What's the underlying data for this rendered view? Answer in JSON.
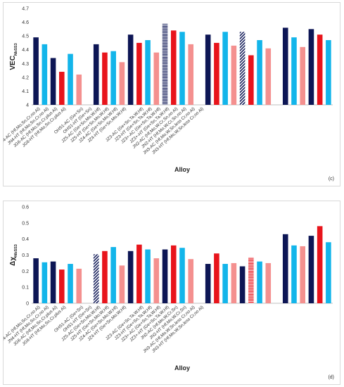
{
  "chart_data": [
    {
      "type": "bar",
      "panel_tag": "(c)",
      "ylabel": "VEC",
      "ylabel_sub": "NbSS3",
      "xlabel": "Alloy",
      "ylim": [
        4,
        4.7
      ],
      "yticks": [
        "4",
        "4.1",
        "4.2",
        "4.3",
        "4.4",
        "4.5",
        "4.6",
        "4.7"
      ],
      "grid": false,
      "categories": [
        "JN4-AC (Hf,Mo,Sn,Cr,no Al)",
        "JN4-HT (Hf,Mo,Sn,Cr,no Al)",
        "JG6-AC (Hf,Mo,Sn,Cr,plus Al)",
        "JG6-HT (Hf,Mo,Sn,Cr,plus Al)",
        "OHS1-AC (Ge+Sn)",
        "OHS1-HT (Ge+Sn)",
        "JZ5-AC (Ge+Sn,Mo,W,Hf)",
        "JZ5-HT (Ge+Sn,Mo,W,Hf)",
        "JZ4-AC (Ge+Sn,Mo,W,Hf)",
        "JZ4-HT (Ge+Sn,Mo,W,Hf)",
        "JZ3-AC (Ge+Sn,Ta,W,Hf)",
        "JZ3-HT (Ge+Sn,Ta,W,Hf)",
        "JZ3+-AC (Ge+Sn,Ta,W,Hf)",
        "JZ3+-HT (Ge+Sn,Ta,W,Hf)",
        "JN2-AC (Hf,Mo,W,Cr,Sn,no Al)",
        "JN2-HT (Hf,Mo,W,Cr,Sn,no Al)",
        "JN3-AC (Hf,Mo,W,Sn,less Cr,no Al)",
        "JN3-HT (Hf,Mo,W,Sn,less Cr,no Al)"
      ],
      "label_slot": [
        0.5,
        1.5,
        2.5,
        3.5,
        5.5,
        6.5,
        7.5,
        8.5,
        9.5,
        10.5,
        12.5,
        13.5,
        14.5,
        15.5,
        16.5,
        17.5,
        18.5,
        19.5
      ],
      "bars": [
        {
          "slot": 0,
          "value": 4.49,
          "color": "#0d1655"
        },
        {
          "slot": 1,
          "value": 4.44,
          "color": "#13b5ea"
        },
        {
          "slot": 2,
          "value": 4.34,
          "color": "#0d1655"
        },
        {
          "slot": 3,
          "value": 4.24,
          "color": "#e8141b"
        },
        {
          "slot": 4,
          "value": 4.37,
          "color": "#13b5ea"
        },
        {
          "slot": 5,
          "value": 4.22,
          "color": "#f4908f"
        },
        {
          "slot": 7,
          "value": 4.44,
          "color": "#0d1655"
        },
        {
          "slot": 8,
          "value": 4.38,
          "color": "#e8141b"
        },
        {
          "slot": 9,
          "value": 4.39,
          "color": "#13b5ea"
        },
        {
          "slot": 10,
          "value": 4.31,
          "color": "#f4908f"
        },
        {
          "slot": 11,
          "value": 4.51,
          "color": "#0d1655"
        },
        {
          "slot": 12,
          "value": 4.45,
          "color": "#e8141b"
        },
        {
          "slot": 13,
          "value": 4.47,
          "color": "#13b5ea"
        },
        {
          "slot": 14,
          "value": 4.38,
          "color": "#f4908f"
        },
        {
          "slot": 15,
          "value": 4.59,
          "color": "#0d1655",
          "pattern": "hlines"
        },
        {
          "slot": 16,
          "value": 4.54,
          "color": "#e8141b"
        },
        {
          "slot": 17,
          "value": 4.53,
          "color": "#13b5ea"
        },
        {
          "slot": 18,
          "value": 4.44,
          "color": "#f4908f"
        },
        {
          "slot": 20,
          "value": 4.51,
          "color": "#0d1655"
        },
        {
          "slot": 21,
          "value": 4.45,
          "color": "#e8141b"
        },
        {
          "slot": 22,
          "value": 4.53,
          "color": "#13b5ea"
        },
        {
          "slot": 23,
          "value": 4.43,
          "color": "#f4908f"
        },
        {
          "slot": 24,
          "value": 4.53,
          "color": "#0d1655",
          "pattern": "diag"
        },
        {
          "slot": 25,
          "value": 4.36,
          "color": "#e8141b"
        },
        {
          "slot": 26,
          "value": 4.47,
          "color": "#13b5ea"
        },
        {
          "slot": 27,
          "value": 4.41,
          "color": "#f4908f"
        },
        {
          "slot": 29,
          "value": 4.56,
          "color": "#0d1655"
        },
        {
          "slot": 30,
          "value": 4.49,
          "color": "#13b5ea"
        },
        {
          "slot": 31,
          "value": 4.42,
          "color": "#f4908f"
        },
        {
          "slot": 32,
          "value": 4.55,
          "color": "#0d1655"
        },
        {
          "slot": 33,
          "value": 4.51,
          "color": "#e8141b"
        },
        {
          "slot": 34,
          "value": 4.47,
          "color": "#13b5ea"
        }
      ]
    },
    {
      "type": "bar",
      "panel_tag": "(d)",
      "ylabel": "Δχ",
      "ylabel_sub": "NbSS3",
      "xlabel": "Alloy",
      "ylim": [
        0,
        0.6
      ],
      "yticks": [
        "0",
        "0.1",
        "0.2",
        "0.3",
        "0.4",
        "0.5",
        "0.6"
      ],
      "grid": false,
      "categories": [
        "JN4-AC (Hf,Mo,Sn,Cr,no Al)",
        "JN4-HT (Hf,Mo,Sn,Cr,no Al)",
        "JG6-AC (Hf,Mo,Sn,Cr,plus Al)",
        "JG6-HT (Hf,Mo,Sn,Cr,plus Al)",
        "OHS1-AC (Ge+Sn)",
        "OHS1-HT (Ge+Sn)",
        "JZ5-AC (Ge+Sn,Mo,W,Hf)",
        "JZ5-HT (Ge+Sn,Mo,W,Hf)",
        "JZ4-AC (Ge+Sn,Mo,W,Hf)",
        "JZ4-HT (Ge+Sn,Mo,W,Hf)",
        "JZ3-AC (Ge+Sn,Ta,W,Hf)",
        "JZ3-HT (Ge+Sn,Ta,W,Hf)",
        "JZ3+-AC (Ge+Sn,Ta,W,Hf)",
        "JZ3+-HT (Ge+Sn,Ta,W,Hf)",
        "JN2-AC (Hf,Mo,W,Cr,Sn)",
        "JN2-HT (Hf,Mo,W,Cr,Sn)",
        "JN3-AC (Hf,Mo,W,Sn,less Cr,no Al)",
        "JN3-HT (Hf,Mo,W,Sn,less Cr,no Al)"
      ],
      "label_slot": [
        0.5,
        1.5,
        2.5,
        3.5,
        5.5,
        6.5,
        7.5,
        8.5,
        9.5,
        10.5,
        12.5,
        13.5,
        14.5,
        15.5,
        16.5,
        17.5,
        18.5,
        19.5
      ],
      "bars": [
        {
          "slot": 0,
          "value": 0.28,
          "color": "#0d1655"
        },
        {
          "slot": 1,
          "value": 0.255,
          "color": "#13b5ea"
        },
        {
          "slot": 2,
          "value": 0.26,
          "color": "#0d1655"
        },
        {
          "slot": 3,
          "value": 0.21,
          "color": "#e8141b"
        },
        {
          "slot": 4,
          "value": 0.245,
          "color": "#13b5ea"
        },
        {
          "slot": 5,
          "value": 0.215,
          "color": "#f4908f"
        },
        {
          "slot": 7,
          "value": 0.305,
          "color": "#0d1655",
          "pattern": "diag"
        },
        {
          "slot": 8,
          "value": 0.325,
          "color": "#e8141b"
        },
        {
          "slot": 9,
          "value": 0.35,
          "color": "#13b5ea"
        },
        {
          "slot": 10,
          "value": 0.235,
          "color": "#f4908f"
        },
        {
          "slot": 11,
          "value": 0.325,
          "color": "#0d1655"
        },
        {
          "slot": 12,
          "value": 0.365,
          "color": "#e8141b"
        },
        {
          "slot": 13,
          "value": 0.335,
          "color": "#13b5ea"
        },
        {
          "slot": 14,
          "value": 0.28,
          "color": "#f4908f"
        },
        {
          "slot": 15,
          "value": 0.335,
          "color": "#0d1655"
        },
        {
          "slot": 16,
          "value": 0.36,
          "color": "#e8141b"
        },
        {
          "slot": 17,
          "value": 0.345,
          "color": "#13b5ea"
        },
        {
          "slot": 18,
          "value": 0.275,
          "color": "#f4908f"
        },
        {
          "slot": 20,
          "value": 0.245,
          "color": "#0d1655"
        },
        {
          "slot": 21,
          "value": 0.31,
          "color": "#e8141b"
        },
        {
          "slot": 22,
          "value": 0.245,
          "color": "#13b5ea"
        },
        {
          "slot": 23,
          "value": 0.25,
          "color": "#f4908f"
        },
        {
          "slot": 24,
          "value": 0.23,
          "color": "#0d1655"
        },
        {
          "slot": 25,
          "value": 0.285,
          "color": "#e8141b",
          "pattern": "hlines"
        },
        {
          "slot": 26,
          "value": 0.26,
          "color": "#13b5ea"
        },
        {
          "slot": 27,
          "value": 0.25,
          "color": "#f4908f"
        },
        {
          "slot": 29,
          "value": 0.43,
          "color": "#0d1655"
        },
        {
          "slot": 30,
          "value": 0.36,
          "color": "#13b5ea"
        },
        {
          "slot": 31,
          "value": 0.355,
          "color": "#f4908f"
        },
        {
          "slot": 32,
          "value": 0.42,
          "color": "#0d1655"
        },
        {
          "slot": 33,
          "value": 0.48,
          "color": "#e8141b"
        },
        {
          "slot": 34,
          "value": 0.38,
          "color": "#13b5ea"
        }
      ]
    }
  ]
}
